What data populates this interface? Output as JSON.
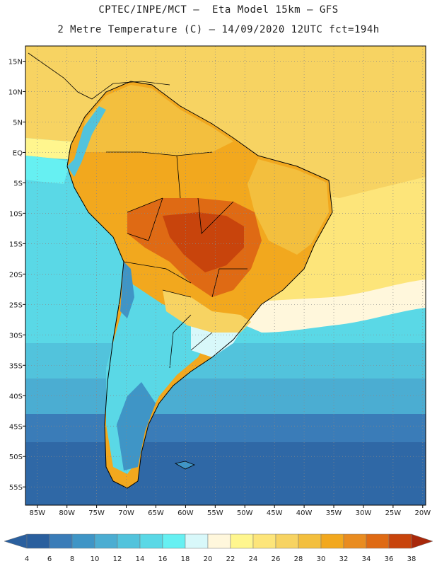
{
  "header": {
    "line1": "CPTEC/INPE/MCT –  Eta Model 15km – GFS",
    "line2": "2 Metre Temperature (C) – 14/09/2020 12UTC fct=194h"
  },
  "axes": {
    "lat_labels": [
      "15N",
      "10N",
      "5N",
      "EQ",
      "5S",
      "10S",
      "15S",
      "20S",
      "25S",
      "30S",
      "35S",
      "40S",
      "45S",
      "50S",
      "55S"
    ],
    "lon_labels": [
      "85W",
      "80W",
      "75W",
      "70W",
      "65W",
      "60W",
      "55W",
      "50W",
      "45W",
      "40W",
      "35W",
      "30W",
      "25W",
      "20W"
    ]
  },
  "legend": {
    "ticks": [
      "4",
      "6",
      "8",
      "10",
      "12",
      "14",
      "16",
      "18",
      "20",
      "22",
      "24",
      "26",
      "28",
      "30",
      "32",
      "34",
      "36",
      "38"
    ],
    "colors": [
      "#2a5f9e",
      "#3a7cb8",
      "#3f95c6",
      "#4badd2",
      "#52c3dc",
      "#5ad8e6",
      "#66f0f2",
      "#d8f8fa",
      "#fff7dc",
      "#fff68e",
      "#fde57a",
      "#f7d362",
      "#f3bf3e",
      "#f2a81e",
      "#e98c20",
      "#df6a14",
      "#c8440c",
      "#a8280a"
    ]
  },
  "chart_data": {
    "type": "heatmap",
    "title": "2 Metre Temperature (C)",
    "source": "CPTEC/INPE/MCT – Eta Model 15km – GFS",
    "valid": "14/09/2020 12UTC fct=194h",
    "lon_range": [
      -85,
      -20
    ],
    "lat_range": [
      -57,
      17
    ],
    "color_scale_min": 4,
    "color_scale_max": 38,
    "color_scale_step": 2,
    "unit": "C",
    "regions": [
      {
        "name": "central-brazil-hot",
        "value": 36
      },
      {
        "name": "north-brazil-warm",
        "value": 30
      },
      {
        "name": "northeast-brazil",
        "value": 28
      },
      {
        "name": "tropical-atlantic",
        "value": 27
      },
      {
        "name": "north-pacific",
        "value": 24
      },
      {
        "name": "east-pacific-cold",
        "value": 16
      },
      {
        "name": "uruguay-plata",
        "value": 21
      },
      {
        "name": "south-atlantic-mid",
        "value": 13
      },
      {
        "name": "patagonia",
        "value": 8
      },
      {
        "name": "southern-ocean",
        "value": 6
      }
    ]
  }
}
